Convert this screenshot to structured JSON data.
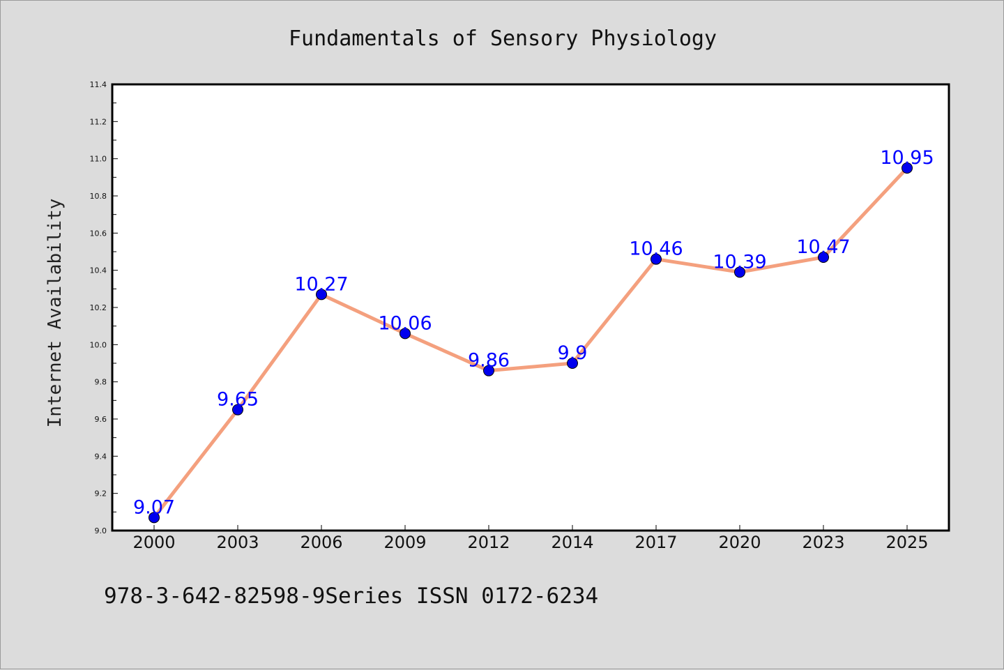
{
  "chart_data": {
    "type": "line",
    "title": "Fundamentals of Sensory Physiology",
    "xlabel": "",
    "ylabel": "Internet Availability",
    "categories": [
      "2000",
      "2003",
      "2006",
      "2009",
      "2012",
      "2014",
      "2017",
      "2020",
      "2023",
      "2025"
    ],
    "series": [
      {
        "values": [
          9.07,
          9.65,
          10.27,
          10.06,
          9.86,
          9.9,
          10.46,
          10.39,
          10.47,
          10.95
        ],
        "labels": [
          "9.07",
          "9.65",
          "10.27",
          "10.06",
          "9.86",
          "9.9",
          "10.46",
          "10.39",
          "10.47",
          "10.95"
        ],
        "line_color": "#f4a07e",
        "marker_color": "#0000ee"
      }
    ],
    "ylim": [
      9.0,
      11.4
    ],
    "yticks": [
      "9.0",
      "9.2",
      "9.4",
      "9.6",
      "9.8",
      "10.0",
      "10.2",
      "10.4",
      "10.6",
      "10.8",
      "11.0",
      "11.2",
      "11.4"
    ],
    "grid": false,
    "legend": "none"
  },
  "footer": {
    "text": "978-3-642-82598-9Series ISSN 0172-6234"
  },
  "colors": {
    "background": "#dcdcdc",
    "plot_background": "#ffffff",
    "data_label": "#0000ff"
  }
}
